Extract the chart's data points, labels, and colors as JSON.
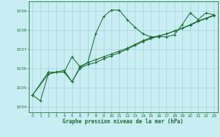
{
  "title": "Graphe pression niveau de la mer (hPa)",
  "bg_color": "#c8eef4",
  "grid_color": "#aad4dc",
  "line_color": "#1e6b30",
  "ylim": [
    1033.7,
    1039.5
  ],
  "xlim": [
    -0.5,
    23.5
  ],
  "yticks": [
    1034,
    1035,
    1036,
    1037,
    1038,
    1039
  ],
  "xticks": [
    0,
    1,
    2,
    3,
    4,
    5,
    6,
    7,
    8,
    9,
    10,
    11,
    12,
    13,
    14,
    15,
    16,
    17,
    18,
    19,
    20,
    21,
    22,
    23
  ],
  "series1_x": [
    0,
    1,
    2,
    3,
    4,
    5,
    6,
    7,
    8,
    9,
    10,
    11,
    12,
    13,
    14,
    15,
    16,
    17,
    18,
    19,
    20,
    21,
    22,
    23
  ],
  "series1_y": [
    1034.6,
    1034.3,
    1035.7,
    1035.8,
    1035.8,
    1036.6,
    1036.1,
    1036.3,
    1037.8,
    1038.7,
    1039.05,
    1039.05,
    1038.55,
    1038.15,
    1037.8,
    1037.65,
    1037.65,
    1037.65,
    1037.75,
    1038.3,
    1038.9,
    1038.55,
    1038.9,
    1038.8
  ],
  "series2_x": [
    0,
    2,
    3,
    4,
    5,
    6,
    7,
    8,
    9,
    10,
    11,
    12,
    13,
    14,
    15,
    16,
    17,
    18,
    19,
    20,
    21,
    22,
    23
  ],
  "series2_y": [
    1034.6,
    1035.8,
    1035.8,
    1035.9,
    1035.3,
    1036.05,
    1036.3,
    1036.45,
    1036.6,
    1036.75,
    1036.9,
    1037.05,
    1037.25,
    1037.45,
    1037.6,
    1037.7,
    1037.8,
    1037.95,
    1038.1,
    1038.25,
    1038.45,
    1038.6,
    1038.75
  ],
  "series3_x": [
    0,
    2,
    3,
    4,
    5,
    6,
    7,
    8,
    9,
    10,
    11,
    12,
    13,
    14,
    15,
    16,
    17,
    18,
    19,
    20,
    21,
    22,
    23
  ],
  "series3_y": [
    1034.6,
    1035.7,
    1035.8,
    1035.8,
    1035.3,
    1036.0,
    1036.2,
    1036.3,
    1036.5,
    1036.65,
    1036.82,
    1037.0,
    1037.2,
    1037.4,
    1037.55,
    1037.68,
    1037.8,
    1037.95,
    1038.1,
    1038.28,
    1038.48,
    1038.62,
    1038.78
  ]
}
